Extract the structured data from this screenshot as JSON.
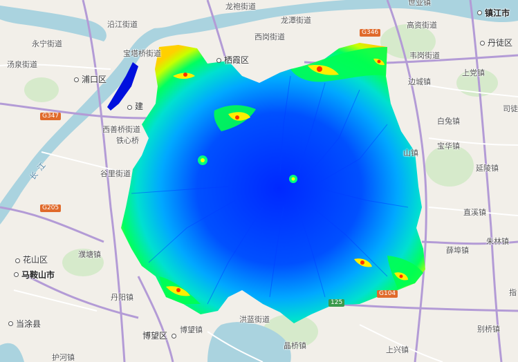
{
  "map": {
    "colors": {
      "land": "#f2efe9",
      "water": "#aad3df",
      "green": "#cfe7c2",
      "road_major": "#b39bd6",
      "road_minor": "#ffffff",
      "dem_low": "#0033ff",
      "dem_mid": "#00c8ff",
      "dem_high": "#ffff00",
      "dem_peak": "#ff2a00"
    },
    "road_shields": [
      {
        "id": "g346",
        "text": "G346"
      },
      {
        "id": "g347",
        "text": "G347"
      },
      {
        "id": "g205",
        "text": "G205"
      },
      {
        "id": "g104",
        "text": "G104"
      },
      {
        "id": "s125",
        "text": "125"
      }
    ],
    "river_label": "长江",
    "cities": [
      {
        "id": "zhenjiang",
        "text": "镇江市"
      },
      {
        "id": "maanshan",
        "text": "马鞍山市"
      },
      {
        "id": "dangtu",
        "text": "当涂县"
      }
    ],
    "districts": [
      {
        "id": "pukou",
        "text": "浦口区"
      },
      {
        "id": "qixia",
        "text": "栖霞区"
      },
      {
        "id": "dantu",
        "text": "丹徒区"
      },
      {
        "id": "huashan",
        "text": "花山区"
      },
      {
        "id": "bowang",
        "text": "博望区"
      },
      {
        "id": "jian",
        "text": "建"
      }
    ],
    "places": [
      {
        "id": "longpao",
        "text": "龙袍街道"
      },
      {
        "id": "shiye",
        "text": "世业镇"
      },
      {
        "id": "yanjiang",
        "text": "沿江街道"
      },
      {
        "id": "longtan",
        "text": "龙潭街道"
      },
      {
        "id": "yongning",
        "text": "永宁街道"
      },
      {
        "id": "xigang",
        "text": "西岗街道"
      },
      {
        "id": "gaozi",
        "text": "高资街道"
      },
      {
        "id": "tangquan",
        "text": "汤泉街道"
      },
      {
        "id": "baota",
        "text": "宝塔桥街道"
      },
      {
        "id": "weigang",
        "text": "韦岗街道"
      },
      {
        "id": "shangdang",
        "text": "上党镇"
      },
      {
        "id": "biancheng",
        "text": "边城镇"
      },
      {
        "id": "situ",
        "text": "司徒"
      },
      {
        "id": "xishanqiao",
        "text": "西善桥街道"
      },
      {
        "id": "tiexin",
        "text": "铁心桥"
      },
      {
        "id": "baitu",
        "text": "白兔镇"
      },
      {
        "id": "baohua",
        "text": "宝华镇"
      },
      {
        "id": "shanzhen",
        "text": "山镇"
      },
      {
        "id": "yanling",
        "text": "延陵镇"
      },
      {
        "id": "guli",
        "text": "谷里街道"
      },
      {
        "id": "zhixi",
        "text": "直溪镇"
      },
      {
        "id": "zhulin",
        "text": "朱林镇"
      },
      {
        "id": "xuebu",
        "text": "薛埠镇"
      },
      {
        "id": "pitang",
        "text": "濮塘镇"
      },
      {
        "id": "danyang",
        "text": "丹阳镇"
      },
      {
        "id": "zhitang",
        "text": "指"
      },
      {
        "id": "hongnan",
        "text": "洪蓝街道"
      },
      {
        "id": "bowangzhen",
        "text": "博望镇"
      },
      {
        "id": "biezhuang",
        "text": "别桥镇"
      },
      {
        "id": "jingqiao",
        "text": "晶桥镇"
      },
      {
        "id": "huhe",
        "text": "护河镇"
      },
      {
        "id": "shangxing",
        "text": "上兴镇"
      }
    ]
  }
}
